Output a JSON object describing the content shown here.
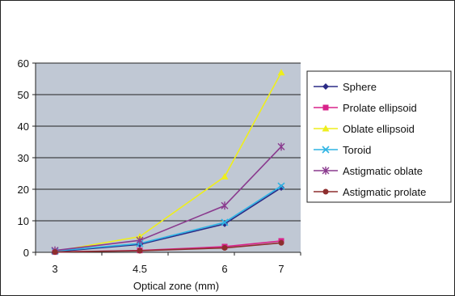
{
  "chart_data": {
    "type": "line",
    "title": "",
    "xlabel": "Optical zone (mm)",
    "ylabel": "",
    "x_ticks": [
      "3",
      "4.5",
      "6",
      "7"
    ],
    "y_ticks": [
      "0",
      "10",
      "20",
      "30",
      "40",
      "50",
      "60"
    ],
    "xlim": [
      3,
      7
    ],
    "ylim": [
      0,
      60
    ],
    "grid": true,
    "legend_position": "right",
    "plot_background": "#c0c8d4",
    "x": [
      3,
      4.5,
      6,
      7
    ],
    "series": [
      {
        "name": "Sphere",
        "values": [
          0.2,
          2.5,
          9.0,
          20.5
        ],
        "color": "#2b2b86",
        "marker": "diamond"
      },
      {
        "name": "Prolate ellipsoid",
        "values": [
          0.1,
          0.6,
          1.8,
          3.6
        ],
        "color": "#d8238a",
        "marker": "square"
      },
      {
        "name": "Oblate ellipsoid",
        "values": [
          0.3,
          5.0,
          24.0,
          57.0
        ],
        "color": "#eeee1c",
        "marker": "triangle"
      },
      {
        "name": "Toroid",
        "values": [
          0.4,
          2.8,
          9.5,
          21.0
        ],
        "color": "#2fb4e4",
        "marker": "x"
      },
      {
        "name": "Astigmatic oblate",
        "values": [
          0.6,
          3.8,
          14.8,
          33.5
        ],
        "color": "#8a3a8e",
        "marker": "asterisk"
      },
      {
        "name": "Astigmatic prolate",
        "values": [
          0.1,
          0.5,
          1.4,
          3.0
        ],
        "color": "#8e2e2e",
        "marker": "circle"
      }
    ]
  }
}
